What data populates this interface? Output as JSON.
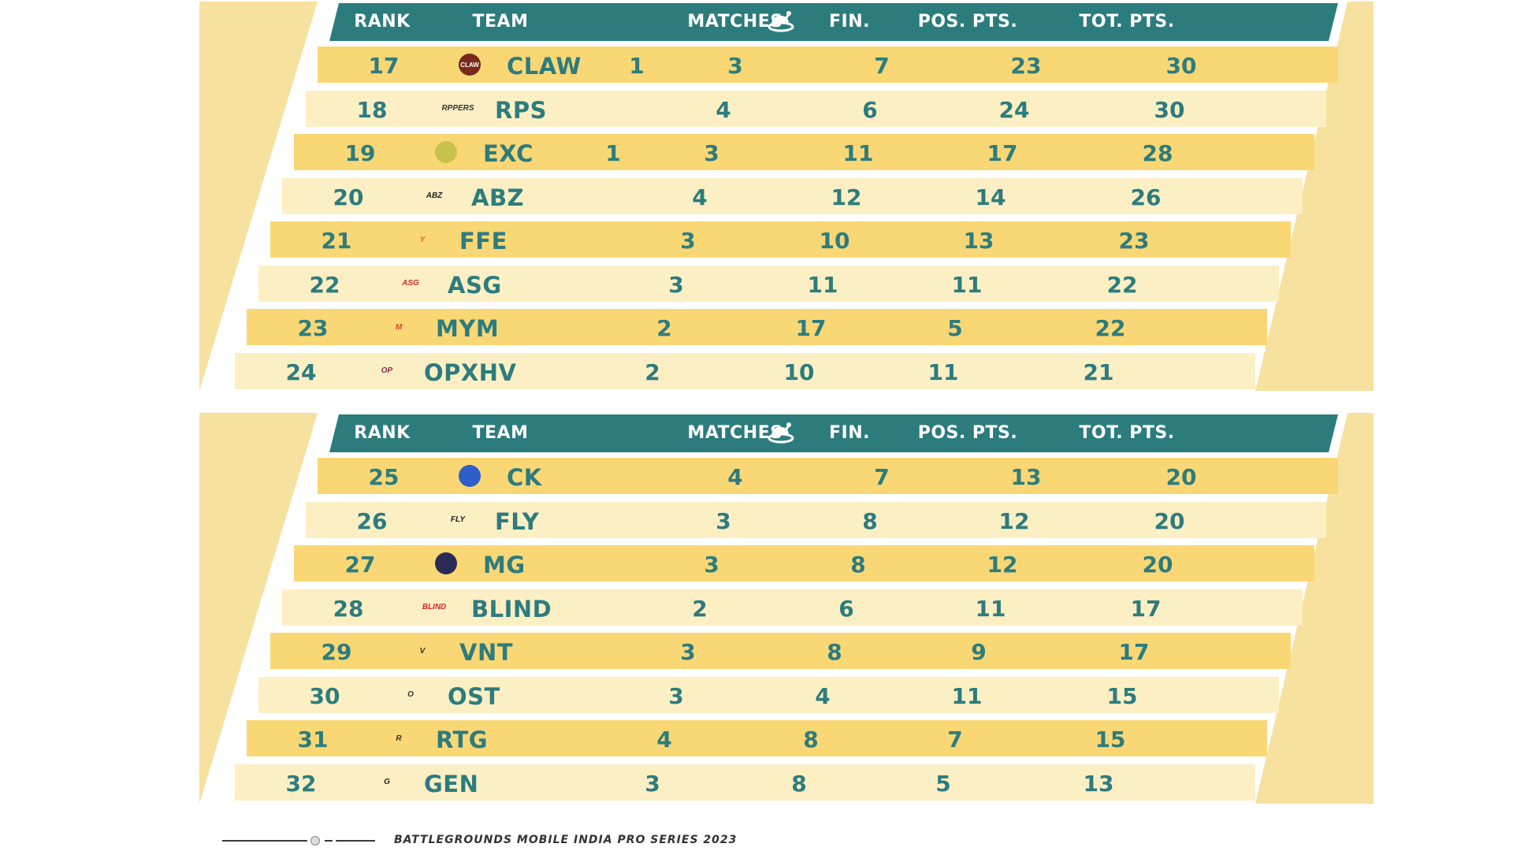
{
  "columns": {
    "rank": "RANK",
    "team": "TEAM",
    "chicken_icon": "chicken-dinner-icon",
    "matches": "MATCHES",
    "fin": "FIN.",
    "pos_pts": "POS. PTS.",
    "tot_pts": "TOT. PTS."
  },
  "tables": [
    {
      "rows": [
        {
          "rank": "17",
          "team": "CLAW",
          "chicken": "1",
          "matches": "3",
          "fin": "7",
          "pos_pts": "23",
          "tot_pts": "30",
          "logo": {
            "kind": "circle",
            "color": "#7a2a1a",
            "text": "CLAW"
          }
        },
        {
          "rank": "18",
          "team": "RPS",
          "chicken": "",
          "matches": "4",
          "fin": "6",
          "pos_pts": "24",
          "tot_pts": "30",
          "logo": {
            "kind": "text",
            "color": "#333333",
            "text": "RPPERS"
          }
        },
        {
          "rank": "19",
          "team": "EXC",
          "chicken": "1",
          "matches": "3",
          "fin": "11",
          "pos_pts": "17",
          "tot_pts": "28",
          "logo": {
            "kind": "circle",
            "color": "#c9c24a",
            "text": ""
          }
        },
        {
          "rank": "20",
          "team": "ABZ",
          "chicken": "",
          "matches": "4",
          "fin": "12",
          "pos_pts": "14",
          "tot_pts": "26",
          "logo": {
            "kind": "text",
            "color": "#1f1f1f",
            "text": "ABZ"
          }
        },
        {
          "rank": "21",
          "team": "FFE",
          "chicken": "",
          "matches": "3",
          "fin": "10",
          "pos_pts": "13",
          "tot_pts": "23",
          "logo": {
            "kind": "text",
            "color": "#d96a2a",
            "text": "Y"
          }
        },
        {
          "rank": "22",
          "team": "ASG",
          "chicken": "",
          "matches": "3",
          "fin": "11",
          "pos_pts": "11",
          "tot_pts": "22",
          "logo": {
            "kind": "text",
            "color": "#d42a2a",
            "text": "ASG"
          }
        },
        {
          "rank": "23",
          "team": "MYM",
          "chicken": "",
          "matches": "2",
          "fin": "17",
          "pos_pts": "5",
          "tot_pts": "22",
          "logo": {
            "kind": "text",
            "color": "#d9472b",
            "text": "M"
          }
        },
        {
          "rank": "24",
          "team": "OPXHV",
          "chicken": "",
          "matches": "2",
          "fin": "10",
          "pos_pts": "11",
          "tot_pts": "21",
          "logo": {
            "kind": "text",
            "color": "#8a2a4a",
            "text": "OP"
          }
        }
      ]
    },
    {
      "rows": [
        {
          "rank": "25",
          "team": "CK",
          "chicken": "",
          "matches": "4",
          "fin": "7",
          "pos_pts": "13",
          "tot_pts": "20",
          "logo": {
            "kind": "circle",
            "color": "#2d5ec9",
            "text": ""
          }
        },
        {
          "rank": "26",
          "team": "FLY",
          "chicken": "",
          "matches": "3",
          "fin": "8",
          "pos_pts": "12",
          "tot_pts": "20",
          "logo": {
            "kind": "text",
            "color": "#222222",
            "text": "FLY"
          }
        },
        {
          "rank": "27",
          "team": "MG",
          "chicken": "",
          "matches": "3",
          "fin": "8",
          "pos_pts": "12",
          "tot_pts": "20",
          "logo": {
            "kind": "circle",
            "color": "#2a2a55",
            "text": ""
          }
        },
        {
          "rank": "28",
          "team": "BLIND",
          "chicken": "",
          "matches": "2",
          "fin": "6",
          "pos_pts": "11",
          "tot_pts": "17",
          "logo": {
            "kind": "text",
            "color": "#d42a2a",
            "text": "BLIND"
          }
        },
        {
          "rank": "29",
          "team": "VNT",
          "chicken": "",
          "matches": "3",
          "fin": "8",
          "pos_pts": "9",
          "tot_pts": "17",
          "logo": {
            "kind": "text",
            "color": "#333333",
            "text": "V"
          }
        },
        {
          "rank": "30",
          "team": "OST",
          "chicken": "",
          "matches": "3",
          "fin": "4",
          "pos_pts": "11",
          "tot_pts": "15",
          "logo": {
            "kind": "text",
            "color": "#333333",
            "text": "O"
          }
        },
        {
          "rank": "31",
          "team": "RTG",
          "chicken": "",
          "matches": "4",
          "fin": "8",
          "pos_pts": "7",
          "tot_pts": "15",
          "logo": {
            "kind": "text",
            "color": "#333333",
            "text": "R"
          }
        },
        {
          "rank": "32",
          "team": "GEN",
          "chicken": "",
          "matches": "3",
          "fin": "8",
          "pos_pts": "5",
          "tot_pts": "13",
          "logo": {
            "kind": "text",
            "color": "#222222",
            "text": "G"
          }
        }
      ]
    }
  ],
  "footer": {
    "text": "BATTLEGROUNDS MOBILE INDIA PRO SERIES 2023"
  },
  "colors": {
    "header": "#2c7c7e",
    "text": "#2c7c7e",
    "row_dark": "#fad775",
    "row_light": "#fdefc4",
    "panel": "#f7e19f"
  }
}
